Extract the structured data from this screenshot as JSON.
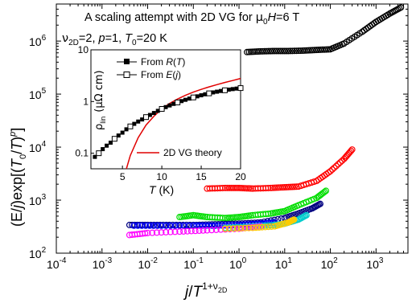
{
  "chart_data": [
    {
      "type": "scatter",
      "title": "A scaling attempt with 2D VG for μ₀H=6 T",
      "title_parts": [
        "A scaling attempt with 2D VG for ",
        "μ",
        "0",
        "H",
        "=6 T"
      ],
      "params_parts": [
        "ν",
        "2D",
        "=2, ",
        "p",
        "=1, ",
        "T",
        "0",
        "=20 K"
      ],
      "xlabel_parts": [
        "j",
        "/",
        "T",
        "1+ν",
        "2D"
      ],
      "ylabel_parts": [
        "(E/",
        "j",
        ")exp[(",
        "T",
        "0",
        "/",
        "T",
        ")",
        "p",
        "]"
      ],
      "x_scale": "log",
      "y_scale": "log",
      "xlim": [
        0.0001,
        5000
      ],
      "ylim": [
        100,
        5000000
      ],
      "x_ticks": [
        0.0001,
        0.001,
        0.01,
        0.1,
        1,
        10,
        100,
        1000
      ],
      "x_tick_labels": [
        [
          "10",
          "-4"
        ],
        [
          "10",
          "-3"
        ],
        [
          "10",
          "-2"
        ],
        [
          "10",
          "-1"
        ],
        [
          "10",
          "0"
        ],
        [
          "10",
          "1"
        ],
        [
          "10",
          "2"
        ],
        [
          "10",
          "3"
        ]
      ],
      "y_ticks": [
        100,
        1000,
        10000,
        100000,
        1000000
      ],
      "y_tick_labels": [
        [
          "10",
          "2"
        ],
        [
          "10",
          "3"
        ],
        [
          "10",
          "4"
        ],
        [
          "10",
          "5"
        ],
        [
          "10",
          "6"
        ]
      ],
      "series": [
        {
          "color": "#000000",
          "points": [
            [
              1.5,
              620000
            ],
            [
              3,
              640000
            ],
            [
              6,
              650000
            ],
            [
              12,
              650000
            ],
            [
              25,
              660000
            ],
            [
              50,
              680000
            ],
            [
              100,
              700000
            ],
            [
              200,
              900000
            ],
            [
              500,
              1500000
            ],
            [
              1000,
              2300000
            ],
            [
              2000,
              3300000
            ],
            [
              3500,
              4300000
            ]
          ]
        },
        {
          "color": "#ff0000",
          "points": [
            [
              0.2,
              1650
            ],
            [
              0.5,
              1700
            ],
            [
              1,
              1700
            ],
            [
              2,
              1650
            ],
            [
              5,
              1700
            ],
            [
              10,
              1750
            ],
            [
              20,
              1800
            ],
            [
              50,
              2300
            ],
            [
              100,
              3500
            ],
            [
              200,
              6000
            ],
            [
              300,
              9000
            ]
          ]
        },
        {
          "color": "#00dd00",
          "points": [
            [
              0.05,
              480
            ],
            [
              0.1,
              520
            ],
            [
              0.2,
              480
            ],
            [
              0.5,
              460
            ],
            [
              1,
              480
            ],
            [
              2,
              520
            ],
            [
              5,
              560
            ],
            [
              10,
              620
            ],
            [
              20,
              800
            ],
            [
              50,
              1100
            ],
            [
              80,
              1500
            ]
          ]
        },
        {
          "color": "#000080",
          "points": [
            [
              0.004,
              340
            ],
            [
              0.01,
              340
            ],
            [
              0.03,
              340
            ],
            [
              0.1,
              340
            ],
            [
              0.3,
              350
            ],
            [
              1,
              360
            ],
            [
              3,
              380
            ],
            [
              10,
              460
            ],
            [
              20,
              560
            ],
            [
              40,
              700
            ],
            [
              60,
              850
            ]
          ]
        },
        {
          "color": "#0000ff",
          "points": [
            [
              0.005,
              330
            ],
            [
              0.02,
              330
            ],
            [
              0.1,
              330
            ],
            [
              0.3,
              330
            ],
            [
              1,
              340
            ],
            [
              3,
              360
            ],
            [
              6,
              380
            ]
          ]
        },
        {
          "color": "#00cccc",
          "points": [
            [
              0.5,
              300
            ],
            [
              2,
              320
            ],
            [
              6,
              340
            ],
            [
              10,
              360
            ],
            [
              20,
              430
            ],
            [
              30,
              520
            ]
          ]
        },
        {
          "color": "#ff00ff",
          "points": [
            [
              0.004,
              220
            ],
            [
              0.01,
              240
            ],
            [
              0.05,
              255
            ],
            [
              0.2,
              270
            ],
            [
              1,
              290
            ],
            [
              3,
              320
            ]
          ]
        },
        {
          "color": "#ffcc00",
          "points": [
            [
              0.5,
              290
            ],
            [
              2,
              300
            ],
            [
              6,
              320
            ],
            [
              12,
              380
            ],
            [
              16,
              430
            ]
          ]
        }
      ]
    },
    {
      "type": "line",
      "inset": true,
      "xlabel_parts": [
        "T",
        " (K)"
      ],
      "ylabel_parts": [
        "ρ",
        "lin",
        "(μΩ cm)"
      ],
      "x_scale": "linear",
      "y_scale": "log",
      "xlim": [
        1,
        20
      ],
      "ylim": [
        0.05,
        10
      ],
      "x_ticks": [
        5,
        10,
        15,
        20
      ],
      "x_tick_labels": [
        "5",
        "10",
        "15",
        "20"
      ],
      "y_ticks": [
        0.1,
        1,
        10
      ],
      "y_tick_labels": [
        "0.1",
        "1",
        "10"
      ],
      "legend_position": "top-left",
      "legend": [
        {
          "label_parts": [
            "From ",
            "R",
            "(",
            "T",
            ")"
          ],
          "marker": "filled-square"
        },
        {
          "label_parts": [
            "From ",
            "E",
            "(",
            "j",
            ")"
          ],
          "marker": "open-square"
        }
      ],
      "theory_label": "2D VG theory",
      "series": [
        {
          "name": "From R(T)",
          "marker": "filled-square",
          "color": "#000000",
          "x": [
            1.5,
            2,
            2.5,
            3,
            3.5,
            4,
            4.5,
            5,
            5.5,
            6,
            6.5,
            7,
            7.5,
            8,
            8.5,
            9,
            9.5,
            10,
            10.5,
            11,
            11.5,
            12,
            12.5,
            13,
            13.5,
            14,
            14.5,
            15,
            15.5,
            16,
            16.5,
            17,
            17.5,
            18,
            18.5,
            19,
            19.5,
            20
          ],
          "y": [
            0.085,
            0.1,
            0.12,
            0.14,
            0.16,
            0.19,
            0.22,
            0.25,
            0.29,
            0.33,
            0.37,
            0.41,
            0.45,
            0.5,
            0.55,
            0.6,
            0.66,
            0.72,
            0.78,
            0.84,
            0.9,
            0.96,
            1.02,
            1.08,
            1.14,
            1.2,
            1.26,
            1.32,
            1.38,
            1.44,
            1.5,
            1.55,
            1.6,
            1.65,
            1.7,
            1.74,
            1.78,
            1.82
          ]
        },
        {
          "name": "From E(j)",
          "marker": "open-square",
          "color": "#000000",
          "x": [
            2,
            4,
            6,
            8,
            10,
            12,
            14,
            16,
            18,
            20
          ],
          "y": [
            0.1,
            0.19,
            0.33,
            0.5,
            0.72,
            0.96,
            1.2,
            1.44,
            1.65,
            1.82
          ]
        },
        {
          "name": "2D VG theory",
          "marker": "none",
          "color": "#e00000",
          "x": [
            5.5,
            6,
            7,
            8,
            9,
            10,
            11,
            12,
            13,
            14,
            15,
            16,
            17,
            18,
            19,
            20
          ],
          "y": [
            0.05,
            0.09,
            0.2,
            0.35,
            0.52,
            0.72,
            0.92,
            1.12,
            1.32,
            1.52,
            1.72,
            1.92,
            2.12,
            2.34,
            2.55,
            2.8
          ]
        }
      ]
    }
  ]
}
